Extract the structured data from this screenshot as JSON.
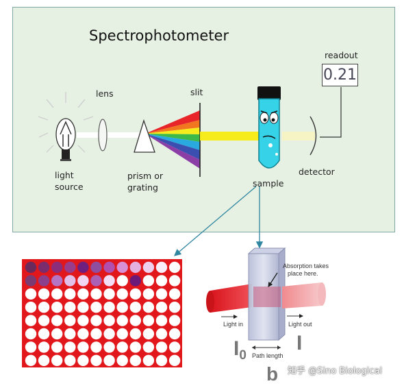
{
  "diagram": {
    "title": "Spectrophotometer",
    "labels": {
      "lens": "lens",
      "slit": "slit",
      "readout": "readout",
      "readout_value": "0.21",
      "light_source_1": "light",
      "light_source_2": "source",
      "prism_1": "prism or",
      "prism_2": "grating",
      "sample": "sample",
      "detector": "detector"
    }
  },
  "cuvette": {
    "absorption_1": "Absorption takes",
    "absorption_2": "place here.",
    "light_in": "Light in",
    "light_out": "Light out",
    "path_length": "Path length",
    "i0_main": "I",
    "i0_sub": "0",
    "i": "I",
    "b": "b"
  },
  "watermark": "知乎 @Sino Biological",
  "colors": {
    "panel_bg": "#e6f1e3",
    "plate_red": "#e1171b",
    "beam_red": "#e32028",
    "arrow": "#2f86a0"
  }
}
